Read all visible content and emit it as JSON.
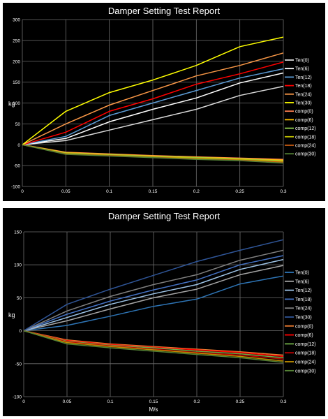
{
  "chart_data": [
    {
      "type": "line",
      "title": "Damper Setting Test Report",
      "xlabel": "",
      "ylabel": "kg",
      "x": [
        0,
        0.05,
        0.1,
        0.15,
        0.2,
        0.25,
        0.3
      ],
      "x_tick_labels": [
        "0",
        "0.05",
        "0.1",
        "0.15",
        "0.2",
        "0.25",
        "0.3"
      ],
      "ylim": [
        -100,
        300
      ],
      "y_ticks": [
        -100,
        -50,
        0,
        50,
        100,
        150,
        200,
        250,
        300
      ],
      "grid": true,
      "legend_position": "right",
      "series": [
        {
          "name": "Ten(0)",
          "color": "#d9d9d9",
          "values": [
            0,
            10,
            35,
            60,
            85,
            118,
            140
          ]
        },
        {
          "name": "Ten(6)",
          "color": "#ffffff",
          "values": [
            0,
            15,
            55,
            85,
            112,
            148,
            172
          ]
        },
        {
          "name": "Ten(12)",
          "color": "#5b9bd5",
          "values": [
            0,
            20,
            70,
            100,
            130,
            160,
            182
          ]
        },
        {
          "name": "Ten(18)",
          "color": "#ff0000",
          "values": [
            0,
            30,
            80,
            110,
            145,
            170,
            198
          ]
        },
        {
          "name": "Ten(24)",
          "color": "#f79646",
          "values": [
            0,
            50,
            95,
            130,
            165,
            190,
            220
          ]
        },
        {
          "name": "Ten(30)",
          "color": "#ffff00",
          "values": [
            0,
            80,
            125,
            155,
            190,
            235,
            258
          ]
        },
        {
          "name": "comp(0)",
          "color": "#ff7f50",
          "values": [
            0,
            -18,
            -22,
            -26,
            -29,
            -32,
            -35
          ]
        },
        {
          "name": "comp(6)",
          "color": "#ffc000",
          "values": [
            0,
            -19,
            -23,
            -27,
            -30,
            -33,
            -37
          ]
        },
        {
          "name": "comp(12)",
          "color": "#92d050",
          "values": [
            0,
            -20,
            -24,
            -28,
            -31,
            -34,
            -39
          ]
        },
        {
          "name": "comp(18)",
          "color": "#bfbf00",
          "values": [
            0,
            -21,
            -25,
            -29,
            -32,
            -35,
            -40
          ]
        },
        {
          "name": "comp(24)",
          "color": "#c55a11",
          "values": [
            0,
            -22,
            -26,
            -30,
            -34,
            -37,
            -42
          ]
        },
        {
          "name": "comp(30)",
          "color": "#548235",
          "values": [
            0,
            -23,
            -27,
            -31,
            -35,
            -38,
            -44
          ]
        }
      ]
    },
    {
      "type": "line",
      "title": "Damper Setting Test Report",
      "xlabel": "M/s",
      "ylabel": "kg",
      "x": [
        0,
        0.05,
        0.1,
        0.15,
        0.2,
        0.25,
        0.3
      ],
      "x_tick_labels": [
        "0",
        "0.05",
        "0.1",
        "0.15",
        "0.2",
        "0.25",
        "0.3"
      ],
      "ylim": [
        -100,
        150
      ],
      "y_ticks": [
        -100,
        -50,
        0,
        50,
        100,
        150
      ],
      "grid": true,
      "legend_position": "right",
      "series": [
        {
          "name": "Ten(0)",
          "color": "#2e75b6",
          "values": [
            0,
            8,
            22,
            37,
            48,
            71,
            83
          ]
        },
        {
          "name": "Ten(6)",
          "color": "#a6a6a6",
          "values": [
            0,
            15,
            33,
            50,
            63,
            85,
            99
          ]
        },
        {
          "name": "Ten(12)",
          "color": "#9dc3e6",
          "values": [
            0,
            20,
            40,
            56,
            70,
            93,
            108
          ]
        },
        {
          "name": "Ten(18)",
          "color": "#4472c4",
          "values": [
            0,
            25,
            45,
            62,
            77,
            100,
            114
          ]
        },
        {
          "name": "Ten(24)",
          "color": "#7f7f7f",
          "values": [
            0,
            30,
            52,
            70,
            85,
            107,
            122
          ]
        },
        {
          "name": "Ten(30)",
          "color": "#2f5597",
          "values": [
            0,
            40,
            63,
            84,
            105,
            122,
            138
          ]
        },
        {
          "name": "comp(0)",
          "color": "#ed7d31",
          "values": [
            0,
            -14,
            -20,
            -24,
            -28,
            -32,
            -37
          ]
        },
        {
          "name": "comp(6)",
          "color": "#ff0000",
          "values": [
            0,
            -15,
            -21,
            -25,
            -29,
            -33,
            -39
          ]
        },
        {
          "name": "comp(12)",
          "color": "#70ad47",
          "values": [
            0,
            -16,
            -22,
            -26,
            -31,
            -35,
            -41
          ]
        },
        {
          "name": "comp(18)",
          "color": "#c00000",
          "values": [
            0,
            -17,
            -23,
            -28,
            -33,
            -37,
            -43
          ]
        },
        {
          "name": "comp(24)",
          "color": "#bf8f00",
          "values": [
            0,
            -18,
            -24,
            -29,
            -34,
            -39,
            -46
          ]
        },
        {
          "name": "comp(30)",
          "color": "#548235",
          "values": [
            0,
            -20,
            -26,
            -31,
            -36,
            -41,
            -48
          ]
        }
      ]
    }
  ]
}
